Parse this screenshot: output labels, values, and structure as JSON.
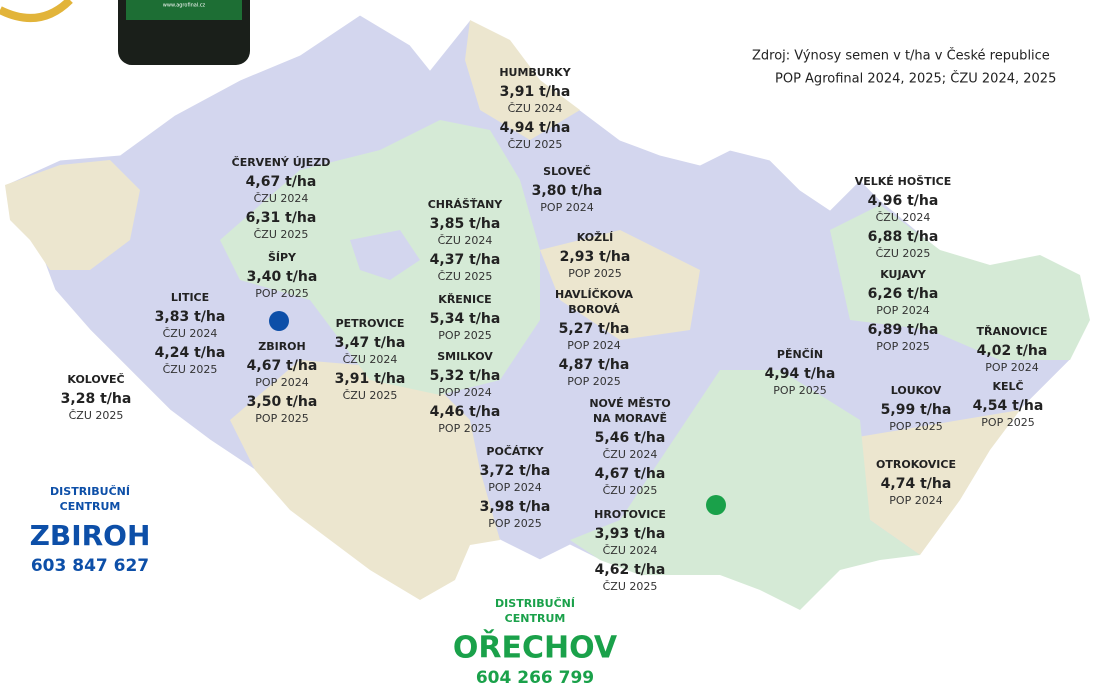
{
  "bottle_label": "www.agrofinal.cz",
  "source": [
    "Zdroj: Výnosy semen v t/ha v České republice",
    "POP Agrofinal 2024, 2025; ČZU 2024, 2025"
  ],
  "locations": [
    {
      "name": [
        "HUMBURKY"
      ],
      "results": [
        {
          "yield": "3,91 t/ha",
          "source": "ČZU 2024"
        },
        {
          "yield": "4,94 t/ha",
          "source": "ČZU 2025"
        }
      ]
    },
    {
      "name": [
        "ČERVENÝ ÚJEZD"
      ],
      "results": [
        {
          "yield": "4,67 t/ha",
          "source": "ČZU 2024"
        },
        {
          "yield": "6,31 t/ha",
          "source": "ČZU 2025"
        }
      ]
    },
    {
      "name": [
        "SLOVEČ"
      ],
      "results": [
        {
          "yield": "3,80 t/ha",
          "source": "POP 2024"
        }
      ]
    },
    {
      "name": [
        "CHRÁŠŤANY"
      ],
      "results": [
        {
          "yield": "3,85 t/ha",
          "source": "ČZU 2024"
        },
        {
          "yield": "4,37 t/ha",
          "source": "ČZU 2025"
        }
      ]
    },
    {
      "name": [
        "KOŽLÍ"
      ],
      "results": [
        {
          "yield": "2,93 t/ha",
          "source": "POP 2025"
        }
      ]
    },
    {
      "name": [
        "ŠÍPY"
      ],
      "results": [
        {
          "yield": "3,40 t/ha",
          "source": "POP 2025"
        }
      ]
    },
    {
      "name": [
        "KŘENICE"
      ],
      "results": [
        {
          "yield": "5,34 t/ha",
          "source": "POP 2025"
        }
      ]
    },
    {
      "name": [
        "HAVLÍČKOVA",
        "BOROVÁ"
      ],
      "results": [
        {
          "yield": "5,27 t/ha",
          "source": "POP 2024"
        },
        {
          "yield": "4,87 t/ha",
          "source": "POP 2025"
        }
      ]
    },
    {
      "name": [
        "LITICE"
      ],
      "results": [
        {
          "yield": "3,83 t/ha",
          "source": "ČZU 2024"
        },
        {
          "yield": "4,24 t/ha",
          "source": "ČZU 2025"
        }
      ]
    },
    {
      "name": [
        "PETROVICE"
      ],
      "results": [
        {
          "yield": "3,47 t/ha",
          "source": "ČZU 2024"
        },
        {
          "yield": "3,91 t/ha",
          "source": "ČZU 2025"
        }
      ]
    },
    {
      "name": [
        "ZBIROH"
      ],
      "results": [
        {
          "yield": "4,67 t/ha",
          "source": "POP 2024"
        },
        {
          "yield": "3,50 t/ha",
          "source": "POP 2025"
        }
      ]
    },
    {
      "name": [
        "SMILKOV"
      ],
      "results": [
        {
          "yield": "5,32 t/ha",
          "source": "POP 2024"
        },
        {
          "yield": "4,46 t/ha",
          "source": "POP 2025"
        }
      ]
    },
    {
      "name": [
        "KOLOVEČ"
      ],
      "results": [
        {
          "yield": "3,28 t/ha",
          "source": "ČZU 2025"
        }
      ]
    },
    {
      "name": [
        "NOVÉ MĚSTO",
        "NA MORAVĚ"
      ],
      "results": [
        {
          "yield": "5,46 t/ha",
          "source": "ČZU 2024"
        },
        {
          "yield": "4,67 t/ha",
          "source": "ČZU 2025"
        }
      ]
    },
    {
      "name": [
        "POČÁTKY"
      ],
      "results": [
        {
          "yield": "3,72 t/ha",
          "source": "POP 2024"
        },
        {
          "yield": "3,98 t/ha",
          "source": "POP 2025"
        }
      ]
    },
    {
      "name": [
        "HROTOVICE"
      ],
      "results": [
        {
          "yield": "3,93 t/ha",
          "source": "ČZU 2024"
        },
        {
          "yield": "4,62 t/ha",
          "source": "ČZU 2025"
        }
      ]
    },
    {
      "name": [
        "VELKÉ HOŠTICE"
      ],
      "results": [
        {
          "yield": "4,96 t/ha",
          "source": "ČZU 2024"
        },
        {
          "yield": "6,88 t/ha",
          "source": "ČZU 2025"
        }
      ]
    },
    {
      "name": [
        "KUJAVY"
      ],
      "results": [
        {
          "yield": "6,26 t/ha",
          "source": "POP 2024"
        },
        {
          "yield": "6,89 t/ha",
          "source": "POP 2025"
        }
      ]
    },
    {
      "name": [
        "PĚNČÍN"
      ],
      "results": [
        {
          "yield": "4,94 t/ha",
          "source": "POP 2025"
        }
      ]
    },
    {
      "name": [
        "TŘANOVICE"
      ],
      "results": [
        {
          "yield": "4,02 t/ha",
          "source": "POP 2024"
        }
      ]
    },
    {
      "name": [
        "KELČ"
      ],
      "results": [
        {
          "yield": "4,54 t/ha",
          "source": "POP 2025"
        }
      ]
    },
    {
      "name": [
        "LOUKOV"
      ],
      "results": [
        {
          "yield": "5,99 t/ha",
          "source": "POP 2025"
        }
      ]
    },
    {
      "name": [
        "OTROKOVICE"
      ],
      "results": [
        {
          "yield": "4,74 t/ha",
          "source": "POP 2024"
        }
      ]
    }
  ],
  "centers": [
    {
      "label": [
        "DISTRIBUČNÍ",
        "CENTRUM"
      ],
      "city": "ZBIROH",
      "phone": "603 847 627"
    },
    {
      "label": [
        "DISTRIBUČNÍ",
        "CENTRUM"
      ],
      "city": "OŘECHOV",
      "phone": "604 266 799"
    }
  ]
}
